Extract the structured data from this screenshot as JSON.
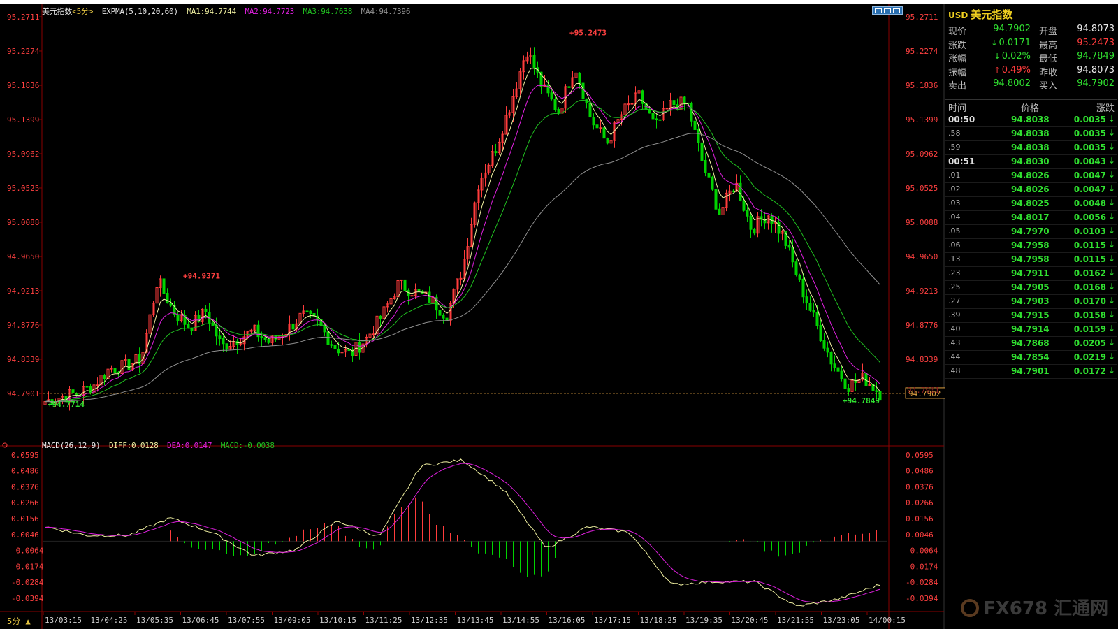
{
  "main_legend": {
    "name": "美元指数",
    "period": "<5分>",
    "indicator": "EXPMA(5,10,20,60)",
    "ma1": "MA1:94.7744",
    "ma2": "MA2:94.7723",
    "ma3": "MA3:94.7638",
    "ma4": "MA4:94.7396"
  },
  "macd_legend": {
    "name": "MACD(26,12,9)",
    "diff": "DIFF:0.0128",
    "dea": "DEA:0.0147",
    "macd": "MACD:-0.0038"
  },
  "period_label": "5分 ▲",
  "price_axis_labels": [
    "95.2711",
    "95.2274",
    "95.1836",
    "95.1399",
    "95.0962",
    "95.0525",
    "95.0088",
    "94.9650",
    "94.9213",
    "94.8776",
    "94.8339",
    "94.7901"
  ],
  "macd_axis_labels": [
    "0.0595",
    "0.0486",
    "0.0376",
    "0.0266",
    "0.0156",
    "0.0046",
    "-0.0064",
    "-0.0174",
    "-0.0284",
    "-0.0394"
  ],
  "time_axis_labels": [
    "13/03:15",
    "13/04:25",
    "13/05:35",
    "13/06:45",
    "13/07:55",
    "13/09:05",
    "13/10:15",
    "13/11:25",
    "13/12:35",
    "13/13:45",
    "13/14:55",
    "13/16:05",
    "13/17:15",
    "13/18:25",
    "13/19:35",
    "13/20:45",
    "13/21:55",
    "13/23:05",
    "14/00:15"
  ],
  "annotations": {
    "high": "95.2473",
    "low_left": "94.7714",
    "local_high": "94.9371",
    "low_right": "94.7849",
    "current_price": "94.7902",
    "hidden_right_label": "94.7901"
  },
  "colors": {
    "up": "#ff3c3c",
    "down": "#00d200",
    "ma1": "#f0f0a0",
    "ma2": "#e020e0",
    "ma3": "#20c020",
    "ma4": "#909090",
    "axis_text": "#ff4040",
    "grid": "#8a0000"
  },
  "panel": {
    "code": "USD",
    "title": "美元指数",
    "quotes": [
      {
        "l1": "现价",
        "v1": "94.7902",
        "c1": "#30e030",
        "l2": "开盘",
        "v2": "94.8073",
        "c2": "#e8e8e8"
      },
      {
        "l1": "涨跌",
        "v1": "0.0171",
        "c1": "#30e030",
        "a1": "↓",
        "l2": "最高",
        "v2": "95.2473",
        "c2": "#ff3c3c"
      },
      {
        "l1": "涨幅",
        "v1": "0.02%",
        "c1": "#30e030",
        "a1": "↓",
        "l2": "最低",
        "v2": "94.7849",
        "c2": "#30e030"
      },
      {
        "l1": "振幅",
        "v1": "0.49%",
        "c1": "#ff3c3c",
        "a1": "↑",
        "l2": "昨收",
        "v2": "94.8073",
        "c2": "#e8e8e8"
      },
      {
        "l1": "卖出",
        "v1": "94.8002",
        "c1": "#30e030",
        "l2": "买入",
        "v2": "94.7902",
        "c2": "#30e030"
      }
    ],
    "ticks_header": {
      "time": "时间",
      "price": "价格",
      "change": "涨跌"
    },
    "ticks": [
      {
        "t": "00:50",
        "big": true,
        "p": "94.8038",
        "c": "0.0035"
      },
      {
        "t": ".58",
        "big": false,
        "p": "94.8038",
        "c": "0.0035"
      },
      {
        "t": ".59",
        "big": false,
        "p": "94.8038",
        "c": "0.0035"
      },
      {
        "t": "00:51",
        "big": true,
        "p": "94.8030",
        "c": "0.0043"
      },
      {
        "t": ".01",
        "big": false,
        "p": "94.8026",
        "c": "0.0047"
      },
      {
        "t": ".02",
        "big": false,
        "p": "94.8026",
        "c": "0.0047"
      },
      {
        "t": ".03",
        "big": false,
        "p": "94.8025",
        "c": "0.0048"
      },
      {
        "t": ".04",
        "big": false,
        "p": "94.8017",
        "c": "0.0056"
      },
      {
        "t": ".05",
        "big": false,
        "p": "94.7970",
        "c": "0.0103"
      },
      {
        "t": ".06",
        "big": false,
        "p": "94.7958",
        "c": "0.0115"
      },
      {
        "t": ".13",
        "big": false,
        "p": "94.7958",
        "c": "0.0115"
      },
      {
        "t": ".23",
        "big": false,
        "p": "94.7911",
        "c": "0.0162"
      },
      {
        "t": ".25",
        "big": false,
        "p": "94.7905",
        "c": "0.0168"
      },
      {
        "t": ".27",
        "big": false,
        "p": "94.7903",
        "c": "0.0170"
      },
      {
        "t": ".39",
        "big": false,
        "p": "94.7915",
        "c": "0.0158"
      },
      {
        "t": ".40",
        "big": false,
        "p": "94.7914",
        "c": "0.0159"
      },
      {
        "t": ".43",
        "big": false,
        "p": "94.7868",
        "c": "0.0205"
      },
      {
        "t": ".44",
        "big": false,
        "p": "94.7854",
        "c": "0.0219"
      },
      {
        "t": ".48",
        "big": false,
        "p": "94.7901",
        "c": "0.0172"
      }
    ]
  },
  "watermark": "FX678 汇通网",
  "chart_data": {
    "type": "candlestick",
    "price_range": [
      94.7714,
      95.2711
    ],
    "macd_range": [
      -0.0394,
      0.0595
    ],
    "close_keypoints": [
      94.78,
      94.786,
      94.79,
      94.8,
      94.822,
      94.825,
      94.835,
      94.935,
      94.895,
      94.875,
      94.895,
      94.85,
      94.86,
      94.87,
      94.855,
      94.87,
      94.89,
      94.88,
      94.85,
      94.84,
      94.86,
      94.89,
      94.93,
      94.92,
      94.91,
      94.89,
      94.95,
      95.06,
      95.1,
      95.16,
      95.23,
      95.18,
      95.15,
      95.21,
      95.14,
      95.11,
      95.15,
      95.17,
      95.13,
      95.16,
      95.16,
      95.08,
      95.02,
      95.06,
      95.0,
      95.02,
      94.99,
      94.93,
      94.88,
      94.83,
      94.8,
      94.81,
      94.79
    ],
    "macd_diff_keypoints": [
      0.01,
      0.004,
      0.004,
      0.016,
      0.006,
      -0.01,
      -0.006,
      0.014,
      0.003,
      0.052,
      0.056,
      0.035,
      -0.005,
      0.01,
      0.006,
      -0.03,
      -0.028,
      -0.028,
      -0.045,
      -0.04,
      -0.03
    ]
  }
}
